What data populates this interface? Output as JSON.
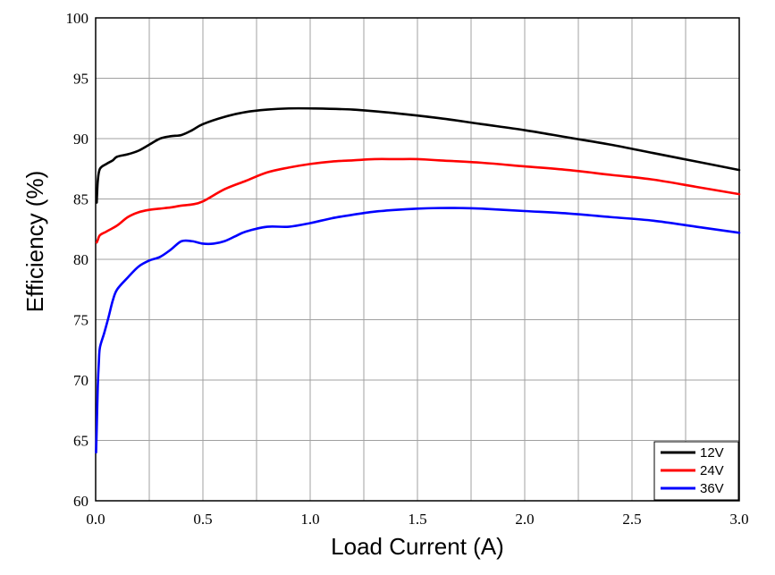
{
  "chart_data": {
    "type": "line",
    "title": "",
    "xlabel": "Load Current (A)",
    "ylabel": "Efficiency (%)",
    "xlim": [
      0,
      3.0
    ],
    "ylim": [
      60,
      100
    ],
    "x_ticks": [
      "0.0",
      "0.5",
      "1.0",
      "1.5",
      "2.0",
      "2.5",
      "3.0"
    ],
    "y_ticks": [
      "60",
      "65",
      "70",
      "75",
      "80",
      "85",
      "90",
      "95",
      "100"
    ],
    "grid": true,
    "legend_position": "bottom-right",
    "series": [
      {
        "name": "12V",
        "color": "#000000",
        "points": [
          [
            0.005,
            84.7
          ],
          [
            0.01,
            86.5
          ],
          [
            0.02,
            87.5
          ],
          [
            0.05,
            87.9
          ],
          [
            0.08,
            88.2
          ],
          [
            0.1,
            88.5
          ],
          [
            0.15,
            88.7
          ],
          [
            0.2,
            89.0
          ],
          [
            0.25,
            89.5
          ],
          [
            0.3,
            90.0
          ],
          [
            0.35,
            90.2
          ],
          [
            0.4,
            90.3
          ],
          [
            0.45,
            90.7
          ],
          [
            0.5,
            91.2
          ],
          [
            0.6,
            91.8
          ],
          [
            0.7,
            92.2
          ],
          [
            0.8,
            92.4
          ],
          [
            0.9,
            92.5
          ],
          [
            1.0,
            92.5
          ],
          [
            1.2,
            92.4
          ],
          [
            1.4,
            92.1
          ],
          [
            1.6,
            91.7
          ],
          [
            1.8,
            91.2
          ],
          [
            2.0,
            90.7
          ],
          [
            2.2,
            90.1
          ],
          [
            2.4,
            89.5
          ],
          [
            2.6,
            88.8
          ],
          [
            2.8,
            88.1
          ],
          [
            3.0,
            87.4
          ]
        ]
      },
      {
        "name": "24V",
        "color": "#ff0000",
        "points": [
          [
            0.005,
            81.4
          ],
          [
            0.01,
            81.6
          ],
          [
            0.02,
            82.0
          ],
          [
            0.05,
            82.3
          ],
          [
            0.1,
            82.8
          ],
          [
            0.15,
            83.5
          ],
          [
            0.2,
            83.9
          ],
          [
            0.25,
            84.1
          ],
          [
            0.3,
            84.2
          ],
          [
            0.35,
            84.3
          ],
          [
            0.4,
            84.45
          ],
          [
            0.45,
            84.55
          ],
          [
            0.5,
            84.8
          ],
          [
            0.6,
            85.8
          ],
          [
            0.7,
            86.5
          ],
          [
            0.8,
            87.2
          ],
          [
            0.9,
            87.6
          ],
          [
            1.0,
            87.9
          ],
          [
            1.1,
            88.1
          ],
          [
            1.2,
            88.2
          ],
          [
            1.3,
            88.3
          ],
          [
            1.4,
            88.3
          ],
          [
            1.5,
            88.3
          ],
          [
            1.6,
            88.2
          ],
          [
            1.8,
            88.0
          ],
          [
            2.0,
            87.7
          ],
          [
            2.2,
            87.4
          ],
          [
            2.4,
            87.0
          ],
          [
            2.6,
            86.6
          ],
          [
            2.8,
            86.0
          ],
          [
            3.0,
            85.4
          ]
        ]
      },
      {
        "name": "36V",
        "color": "#0000ff",
        "points": [
          [
            0.002,
            64.0
          ],
          [
            0.005,
            66.0
          ],
          [
            0.01,
            69.5
          ],
          [
            0.015,
            71.5
          ],
          [
            0.02,
            72.7
          ],
          [
            0.04,
            73.9
          ],
          [
            0.06,
            75.2
          ],
          [
            0.08,
            76.6
          ],
          [
            0.1,
            77.5
          ],
          [
            0.15,
            78.5
          ],
          [
            0.2,
            79.4
          ],
          [
            0.25,
            79.9
          ],
          [
            0.3,
            80.2
          ],
          [
            0.35,
            80.8
          ],
          [
            0.4,
            81.5
          ],
          [
            0.45,
            81.5
          ],
          [
            0.5,
            81.3
          ],
          [
            0.55,
            81.3
          ],
          [
            0.6,
            81.5
          ],
          [
            0.65,
            81.9
          ],
          [
            0.7,
            82.3
          ],
          [
            0.8,
            82.7
          ],
          [
            0.9,
            82.7
          ],
          [
            1.0,
            83.0
          ],
          [
            1.1,
            83.4
          ],
          [
            1.2,
            83.7
          ],
          [
            1.3,
            83.95
          ],
          [
            1.4,
            84.1
          ],
          [
            1.5,
            84.2
          ],
          [
            1.6,
            84.25
          ],
          [
            1.7,
            84.25
          ],
          [
            1.8,
            84.2
          ],
          [
            2.0,
            84.0
          ],
          [
            2.2,
            83.8
          ],
          [
            2.4,
            83.5
          ],
          [
            2.6,
            83.2
          ],
          [
            2.8,
            82.7
          ],
          [
            3.0,
            82.2
          ]
        ]
      }
    ]
  }
}
